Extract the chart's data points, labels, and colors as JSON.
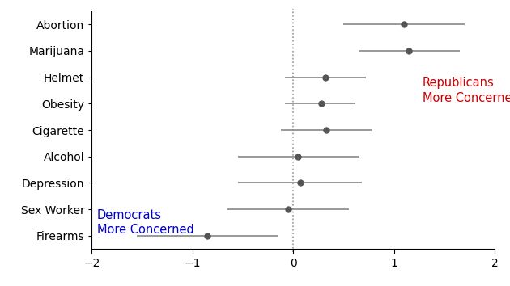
{
  "categories": [
    "Abortion",
    "Marijuana",
    "Helmet",
    "Obesity",
    "Cigarette",
    "Alcohol",
    "Depression",
    "Sex Worker",
    "Firearms"
  ],
  "point_estimates": [
    1.1,
    1.15,
    0.32,
    0.28,
    0.33,
    0.05,
    0.07,
    -0.05,
    -0.85
  ],
  "ci_low": [
    0.5,
    0.65,
    -0.08,
    -0.08,
    -0.12,
    -0.55,
    -0.55,
    -0.65,
    -1.55
  ],
  "ci_high": [
    1.7,
    1.65,
    0.72,
    0.62,
    0.78,
    0.65,
    0.68,
    0.55,
    -0.15
  ],
  "xlim": [
    -2,
    2
  ],
  "xticks": [
    -2,
    -1,
    0,
    1,
    2
  ],
  "dot_color": "#555555",
  "line_color": "#888888",
  "dot_size": 6,
  "line_width": 1.2,
  "republicans_label": "Republicans\nMore Concerned",
  "democrats_label": "Democrats\nMore Concerned",
  "republicans_color": "#cc0000",
  "democrats_color": "#0000cc",
  "background_color": "#ffffff",
  "dashed_line_color": "#999999",
  "axis_label_fontsize": 10,
  "annotation_fontsize": 10.5
}
